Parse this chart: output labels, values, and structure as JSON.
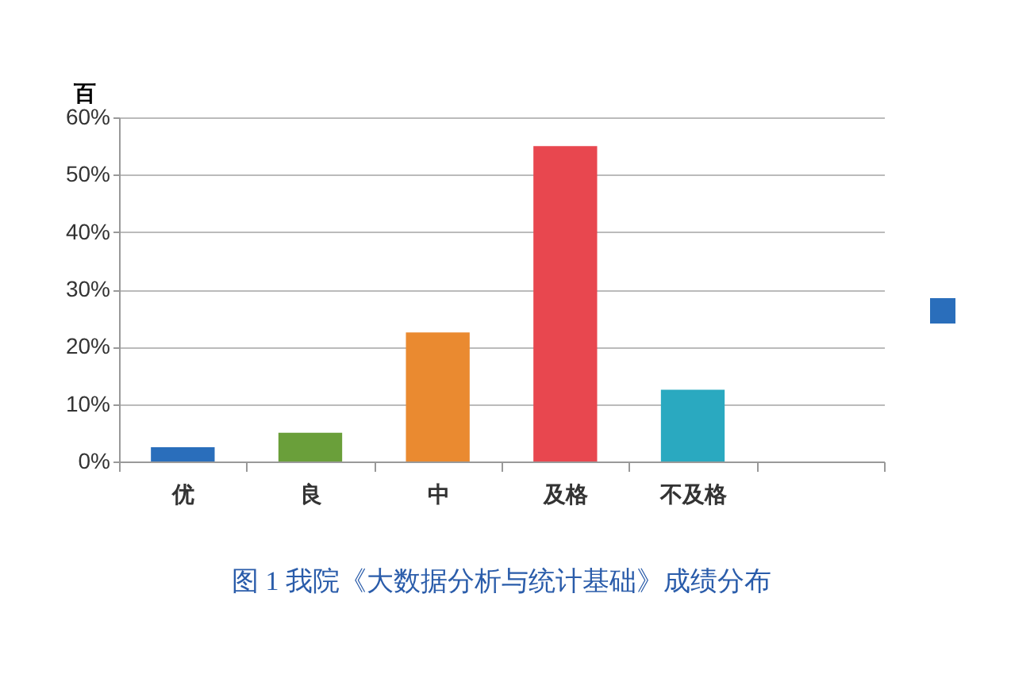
{
  "chart_data": {
    "type": "bar",
    "title": "图 1 我院《大数据分析与统计基础》成绩分布",
    "ylabel": "百",
    "categories": [
      "优",
      "良",
      "中",
      "及格",
      "不及格",
      null
    ],
    "values": [
      2.5,
      5,
      22.5,
      55,
      12.5,
      null
    ],
    "colors": [
      "#2a6ebb",
      "#6a9f3a",
      "#ea8a30",
      "#e8474f",
      "#2aa9c0",
      "#2a6ebb"
    ],
    "ylim": [
      0,
      60
    ],
    "yticks": [
      {
        "value": 0,
        "label": "0%"
      },
      {
        "value": 10,
        "label": "10%"
      },
      {
        "value": 20,
        "label": "20%"
      },
      {
        "value": 30,
        "label": "30%"
      },
      {
        "value": 40,
        "label": "40%"
      },
      {
        "value": 50,
        "label": "50%"
      },
      {
        "value": 60,
        "label": "60%"
      }
    ],
    "grid": "y"
  }
}
